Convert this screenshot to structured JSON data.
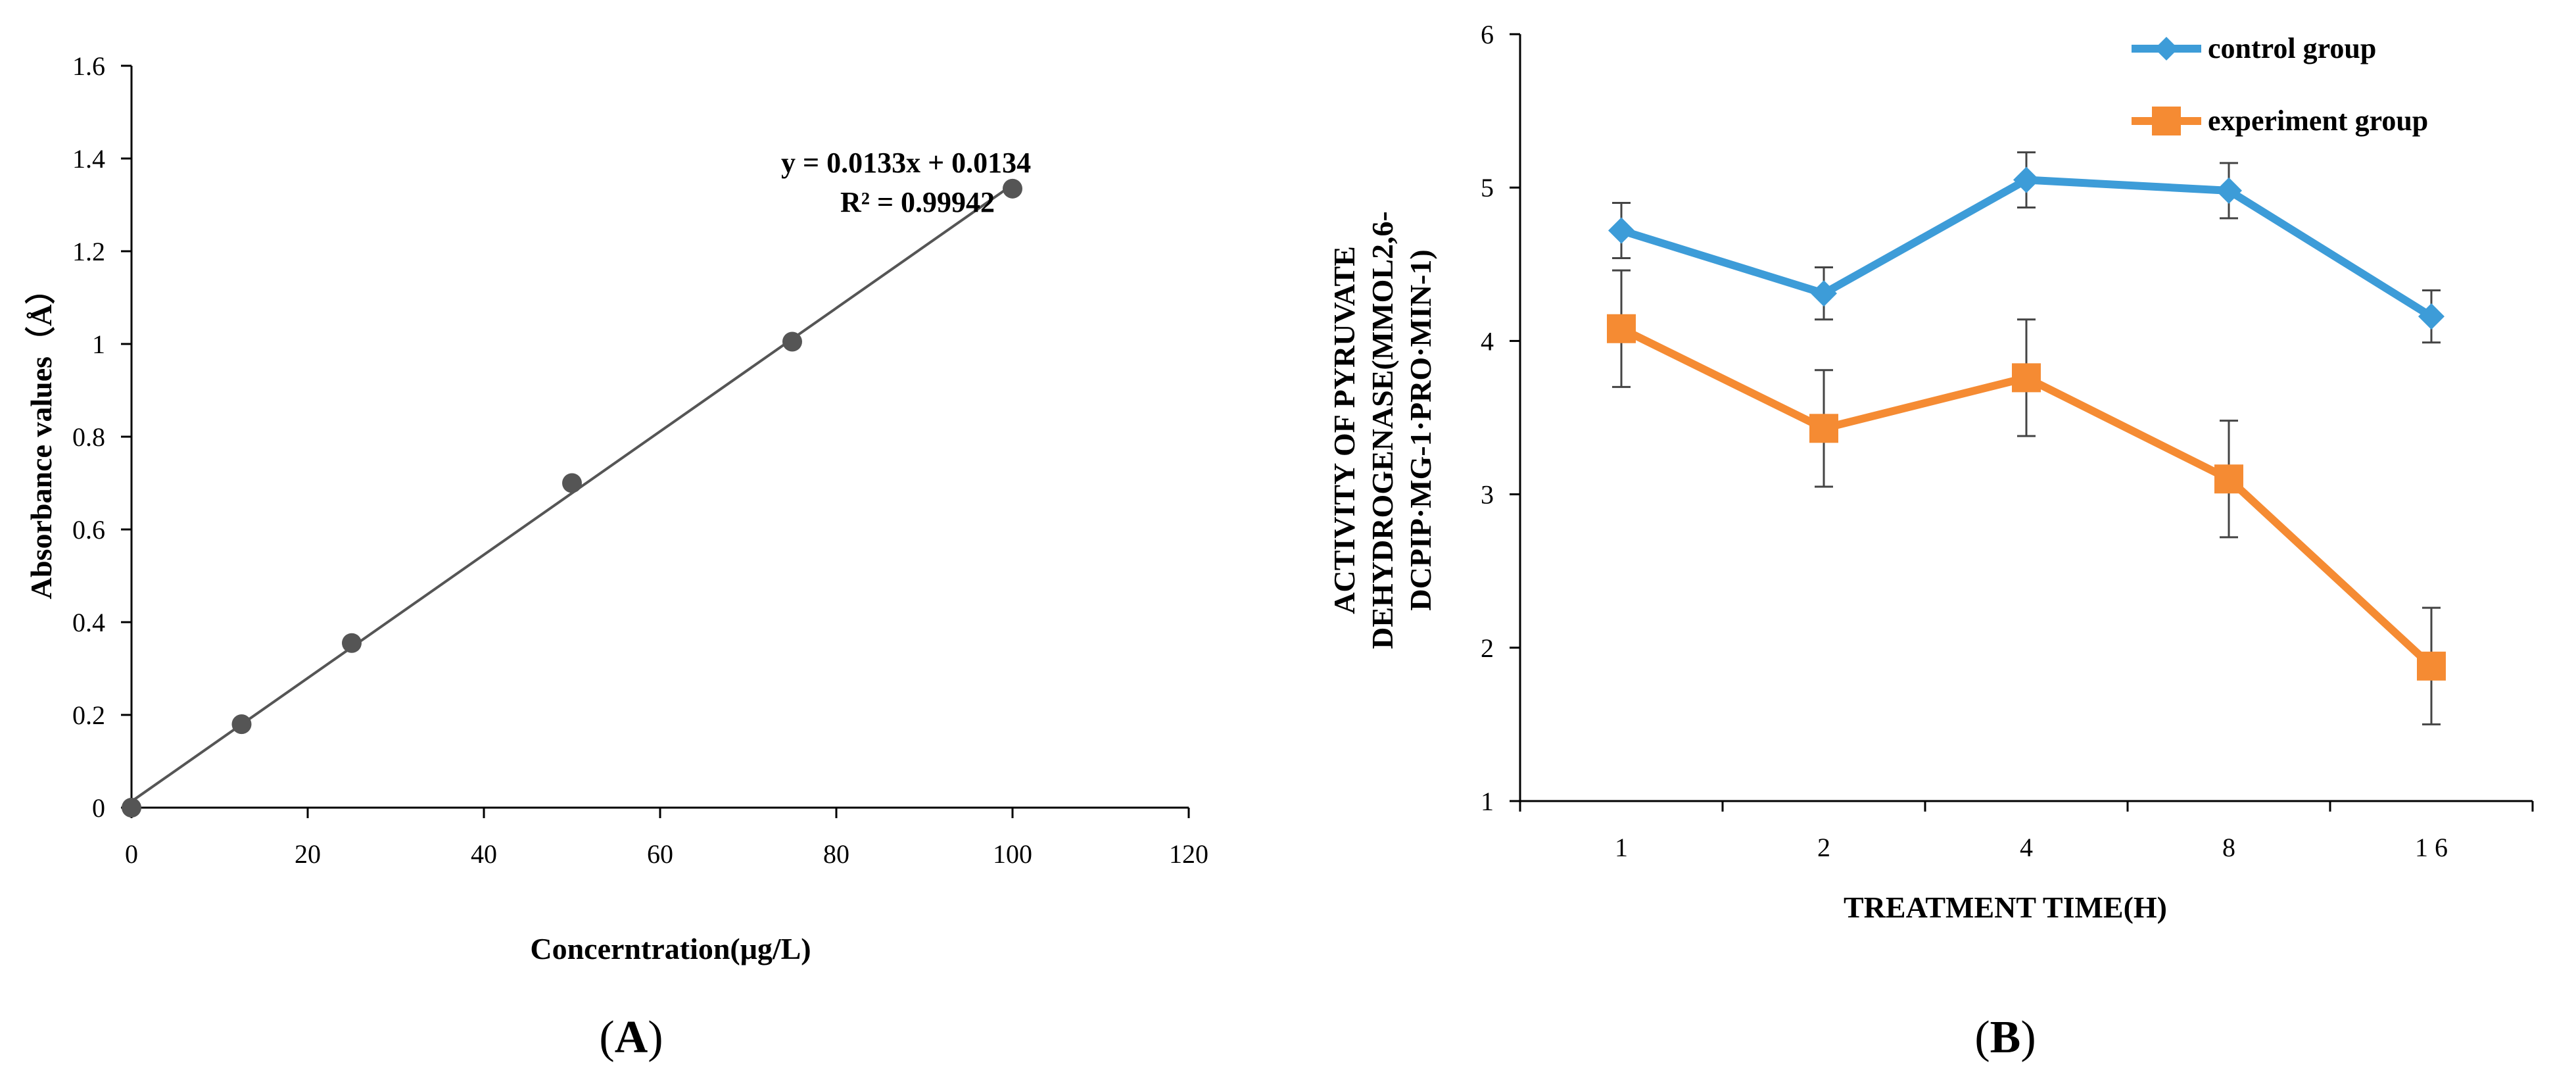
{
  "panels": {
    "a": {
      "label_letter": "A"
    },
    "b": {
      "label_letter": "B"
    }
  },
  "chart_data": [
    {
      "type": "scatter",
      "title": "",
      "xlabel": "Concerntration(μg/L)",
      "ylabel": "Absorbance values（Å）",
      "xlim": [
        0,
        120
      ],
      "ylim": [
        0,
        1.6
      ],
      "x_ticks": [
        0,
        20,
        40,
        60,
        80,
        100,
        120
      ],
      "y_ticks": [
        0,
        0.2,
        0.4,
        0.6,
        0.8,
        1,
        1.2,
        1.4,
        1.6
      ],
      "x_tick_labels": [
        "0",
        "20",
        "40",
        "60",
        "80",
        "100",
        "120"
      ],
      "y_tick_labels": [
        "0",
        "0.2",
        "0.4",
        "0.6",
        "0.8",
        "1",
        "1.2",
        "1.4",
        "1.6"
      ],
      "series": [
        {
          "x": [
            0,
            12.5,
            25,
            50,
            75,
            100
          ],
          "y": [
            0.0,
            0.18,
            0.355,
            0.7,
            1.005,
            1.335
          ]
        }
      ],
      "trendline": {
        "slope": 0.0133,
        "intercept": 0.0134,
        "x_range": [
          0,
          100
        ]
      },
      "annotations": [
        "y = 0.0133x + 0.0134",
        "R² = 0.99942"
      ],
      "grid": false,
      "colors": {
        "marker": "#555555",
        "line": "#555555"
      }
    },
    {
      "type": "line",
      "title": "",
      "xlabel": "TREATMENT TIME(H)",
      "ylabel_lines": [
        "ACTIVITY OF PYRUVATE",
        "DEHYDROGENASE(MMOL2,6-",
        "DCPIP·MG-1·PRO·MIN-1)"
      ],
      "categories": [
        "1",
        "2",
        "4",
        "8",
        "1 6"
      ],
      "ylim": [
        1,
        6
      ],
      "y_ticks": [
        1,
        2,
        3,
        4,
        5,
        6
      ],
      "y_tick_labels": [
        "1",
        "2",
        "3",
        "4",
        "5",
        "6"
      ],
      "series": [
        {
          "name": "control group",
          "values": [
            4.72,
            4.31,
            5.05,
            4.98,
            4.16
          ],
          "errors": [
            0.18,
            0.17,
            0.18,
            0.18,
            0.17
          ],
          "color": "#3d9cd8",
          "marker": "diamond"
        },
        {
          "name": "experiment group",
          "values": [
            4.08,
            3.43,
            3.76,
            3.1,
            1.88
          ],
          "errors": [
            0.38,
            0.38,
            0.38,
            0.38,
            0.38
          ],
          "color": "#f58b33",
          "marker": "square"
        }
      ],
      "legend_position": "top-right",
      "grid": false
    }
  ]
}
